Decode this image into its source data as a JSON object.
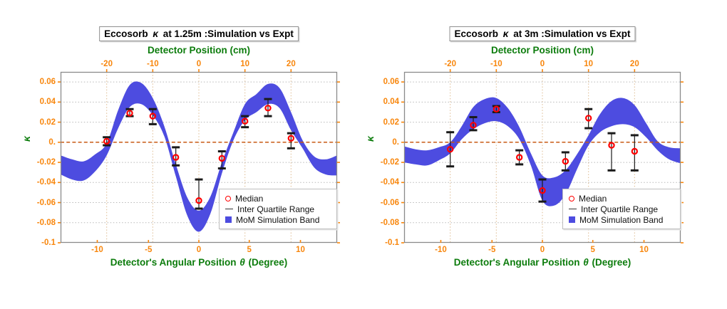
{
  "colors": {
    "background": "#ffffff",
    "band": "#4d4ce0",
    "median_marker": "#ff0000",
    "iqr_bar": "#1a1a1a",
    "zero_line": "#c85a14",
    "grid_horizontal": "#b8b8b8",
    "grid_vertical": "#ddb98e",
    "frame": "#8a8a8a",
    "tick_mark": "#f8860c",
    "tick_label": "#f8860c",
    "axis_label": "#0c7c0c",
    "title_text": "#000000"
  },
  "legend": {
    "items": [
      {
        "label": "Median",
        "marker": "red-open-circle"
      },
      {
        "label": "Inter Quartile Range",
        "marker": "black-line"
      },
      {
        "label": "MoM Simulation Band",
        "marker": "blue-filled-square"
      }
    ]
  },
  "chart_data": [
    {
      "type": "area",
      "title": "Eccosorb κ at 1.25m :Simulation vs Expt",
      "title_pre": "Eccosorb ",
      "title_kappa": "κ",
      "title_post": " at 1.25m :Simulation vs Expt",
      "top_axis": {
        "label": "Detector Position (cm)",
        "tick_values": [
          -20,
          -10,
          0,
          10,
          20
        ],
        "tick_labels": [
          "-20",
          "-10",
          "0",
          "10",
          "20"
        ],
        "range": [
          -30,
          30
        ]
      },
      "bottom_axis": {
        "label": "Detector's Angular Position θ (Degree)",
        "label_pre": "Detector's Angular Position ",
        "label_theta": "θ",
        "label_post": " (Degree)",
        "tick_values": [
          -10,
          -5,
          0,
          5,
          10
        ],
        "tick_labels": [
          "-10",
          "-5",
          "0",
          "5",
          "10"
        ],
        "mapping": "position_cm = 125·tan(θ)"
      },
      "y_axis": {
        "label": "κ",
        "tick_values": [
          0.06,
          0.04,
          0.02,
          0,
          -0.02,
          -0.04,
          -0.06,
          -0.08,
          -0.1
        ],
        "tick_labels": [
          "0.06",
          "0.04",
          "0.02",
          "0.",
          "-0.02",
          "-0.04",
          "-0.06",
          "-0.08",
          "-0.1"
        ],
        "range": [
          -0.1,
          0.07
        ],
        "zero_line": 0
      },
      "experiment": {
        "positions_cm": [
          -20,
          -15,
          -10,
          -5,
          0,
          5,
          10,
          15,
          20
        ],
        "median": [
          0.001,
          0.029,
          0.026,
          -0.015,
          -0.058,
          -0.016,
          0.021,
          0.034,
          0.004
        ],
        "iqr_low": [
          -0.003,
          0.026,
          0.018,
          -0.023,
          -0.066,
          -0.026,
          0.015,
          0.026,
          -0.006
        ],
        "iqr_high": [
          0.005,
          0.033,
          0.033,
          -0.005,
          -0.037,
          -0.009,
          0.026,
          0.043,
          0.009
        ]
      },
      "simulation_band": {
        "positions_cm": [
          -30,
          -27.5,
          -25,
          -22.5,
          -20,
          -17.5,
          -15,
          -12.5,
          -10,
          -7.5,
          -5,
          -2.5,
          0,
          2.5,
          5,
          7.5,
          10,
          12.5,
          15,
          17.5,
          20,
          22.5,
          25,
          27.5,
          30
        ],
        "upper": [
          -0.013,
          -0.017,
          -0.019,
          -0.012,
          -0.001,
          0.032,
          0.057,
          0.059,
          0.044,
          0.016,
          -0.022,
          -0.055,
          -0.068,
          -0.054,
          -0.02,
          0.01,
          0.038,
          0.048,
          0.058,
          0.054,
          0.03,
          0.002,
          -0.014,
          -0.017,
          -0.013
        ],
        "lower": [
          -0.032,
          -0.037,
          -0.038,
          -0.029,
          -0.013,
          0.014,
          0.035,
          0.038,
          0.027,
          0.006,
          -0.034,
          -0.073,
          -0.089,
          -0.071,
          -0.031,
          0.002,
          0.022,
          0.03,
          0.038,
          0.034,
          0.012,
          -0.006,
          -0.025,
          -0.032,
          -0.033
        ]
      }
    },
    {
      "type": "area",
      "title": "Eccosorb κ at 3m :Simulation vs Expt",
      "title_pre": "Eccosorb ",
      "title_kappa": "κ",
      "title_post": " at 3m :Simulation vs Expt",
      "top_axis": {
        "label": "Detector Position (cm)",
        "tick_values": [
          -20,
          -10,
          0,
          10,
          20
        ],
        "tick_labels": [
          "-20",
          "-10",
          "0",
          "10",
          "20"
        ],
        "range": [
          -30,
          30
        ]
      },
      "bottom_axis": {
        "label": "Detector's Angular Position θ (Degree)",
        "label_pre": "Detector's Angular Position ",
        "label_theta": "θ",
        "label_post": " (Degree)",
        "tick_values": [
          -10,
          -5,
          0,
          5,
          10
        ],
        "tick_labels": [
          "-10",
          "-5",
          "0",
          "5",
          "10"
        ],
        "mapping": "position_cm = 125·tan(θ)"
      },
      "y_axis": {
        "label": "κ",
        "tick_values": [
          0.06,
          0.04,
          0.02,
          0,
          -0.02,
          -0.04,
          -0.06,
          -0.08,
          -0.1
        ],
        "tick_labels": [
          "0.06",
          "0.04",
          "0.02",
          "0.",
          "-0.02",
          "-0.04",
          "-0.06",
          "-0.08",
          "-0.1"
        ],
        "range": [
          -0.1,
          0.07
        ],
        "zero_line": 0
      },
      "experiment": {
        "positions_cm": [
          -20,
          -15,
          -10,
          -5,
          0,
          5,
          10,
          15,
          20
        ],
        "median": [
          -0.007,
          0.017,
          0.033,
          -0.015,
          -0.048,
          -0.019,
          0.024,
          -0.003,
          -0.009
        ],
        "iqr_low": [
          -0.024,
          0.012,
          0.03,
          -0.022,
          -0.059,
          -0.028,
          0.014,
          -0.028,
          -0.028
        ],
        "iqr_high": [
          0.01,
          0.025,
          0.036,
          -0.008,
          -0.037,
          -0.01,
          0.033,
          0.009,
          0.007
        ]
      },
      "simulation_band": {
        "positions_cm": [
          -30,
          -27.5,
          -25,
          -22.5,
          -20,
          -17.5,
          -15,
          -12.5,
          -10,
          -7.5,
          -5,
          -2.5,
          0,
          2.5,
          5,
          7.5,
          10,
          12.5,
          15,
          17.5,
          20,
          22.5,
          25,
          27.5,
          30
        ],
        "upper": [
          -0.004,
          -0.007,
          -0.008,
          -0.005,
          0.0,
          0.016,
          0.035,
          0.043,
          0.044,
          0.034,
          0.015,
          -0.011,
          -0.033,
          -0.035,
          -0.028,
          -0.012,
          0.007,
          0.028,
          0.041,
          0.044,
          0.037,
          0.019,
          0.001,
          -0.005,
          -0.006
        ],
        "lower": [
          -0.02,
          -0.022,
          -0.023,
          -0.018,
          -0.011,
          0.003,
          0.013,
          0.019,
          0.021,
          0.016,
          0.003,
          -0.023,
          -0.058,
          -0.063,
          -0.052,
          -0.027,
          -0.003,
          0.01,
          0.016,
          0.018,
          0.015,
          0.005,
          -0.008,
          -0.017,
          -0.021
        ]
      }
    }
  ]
}
